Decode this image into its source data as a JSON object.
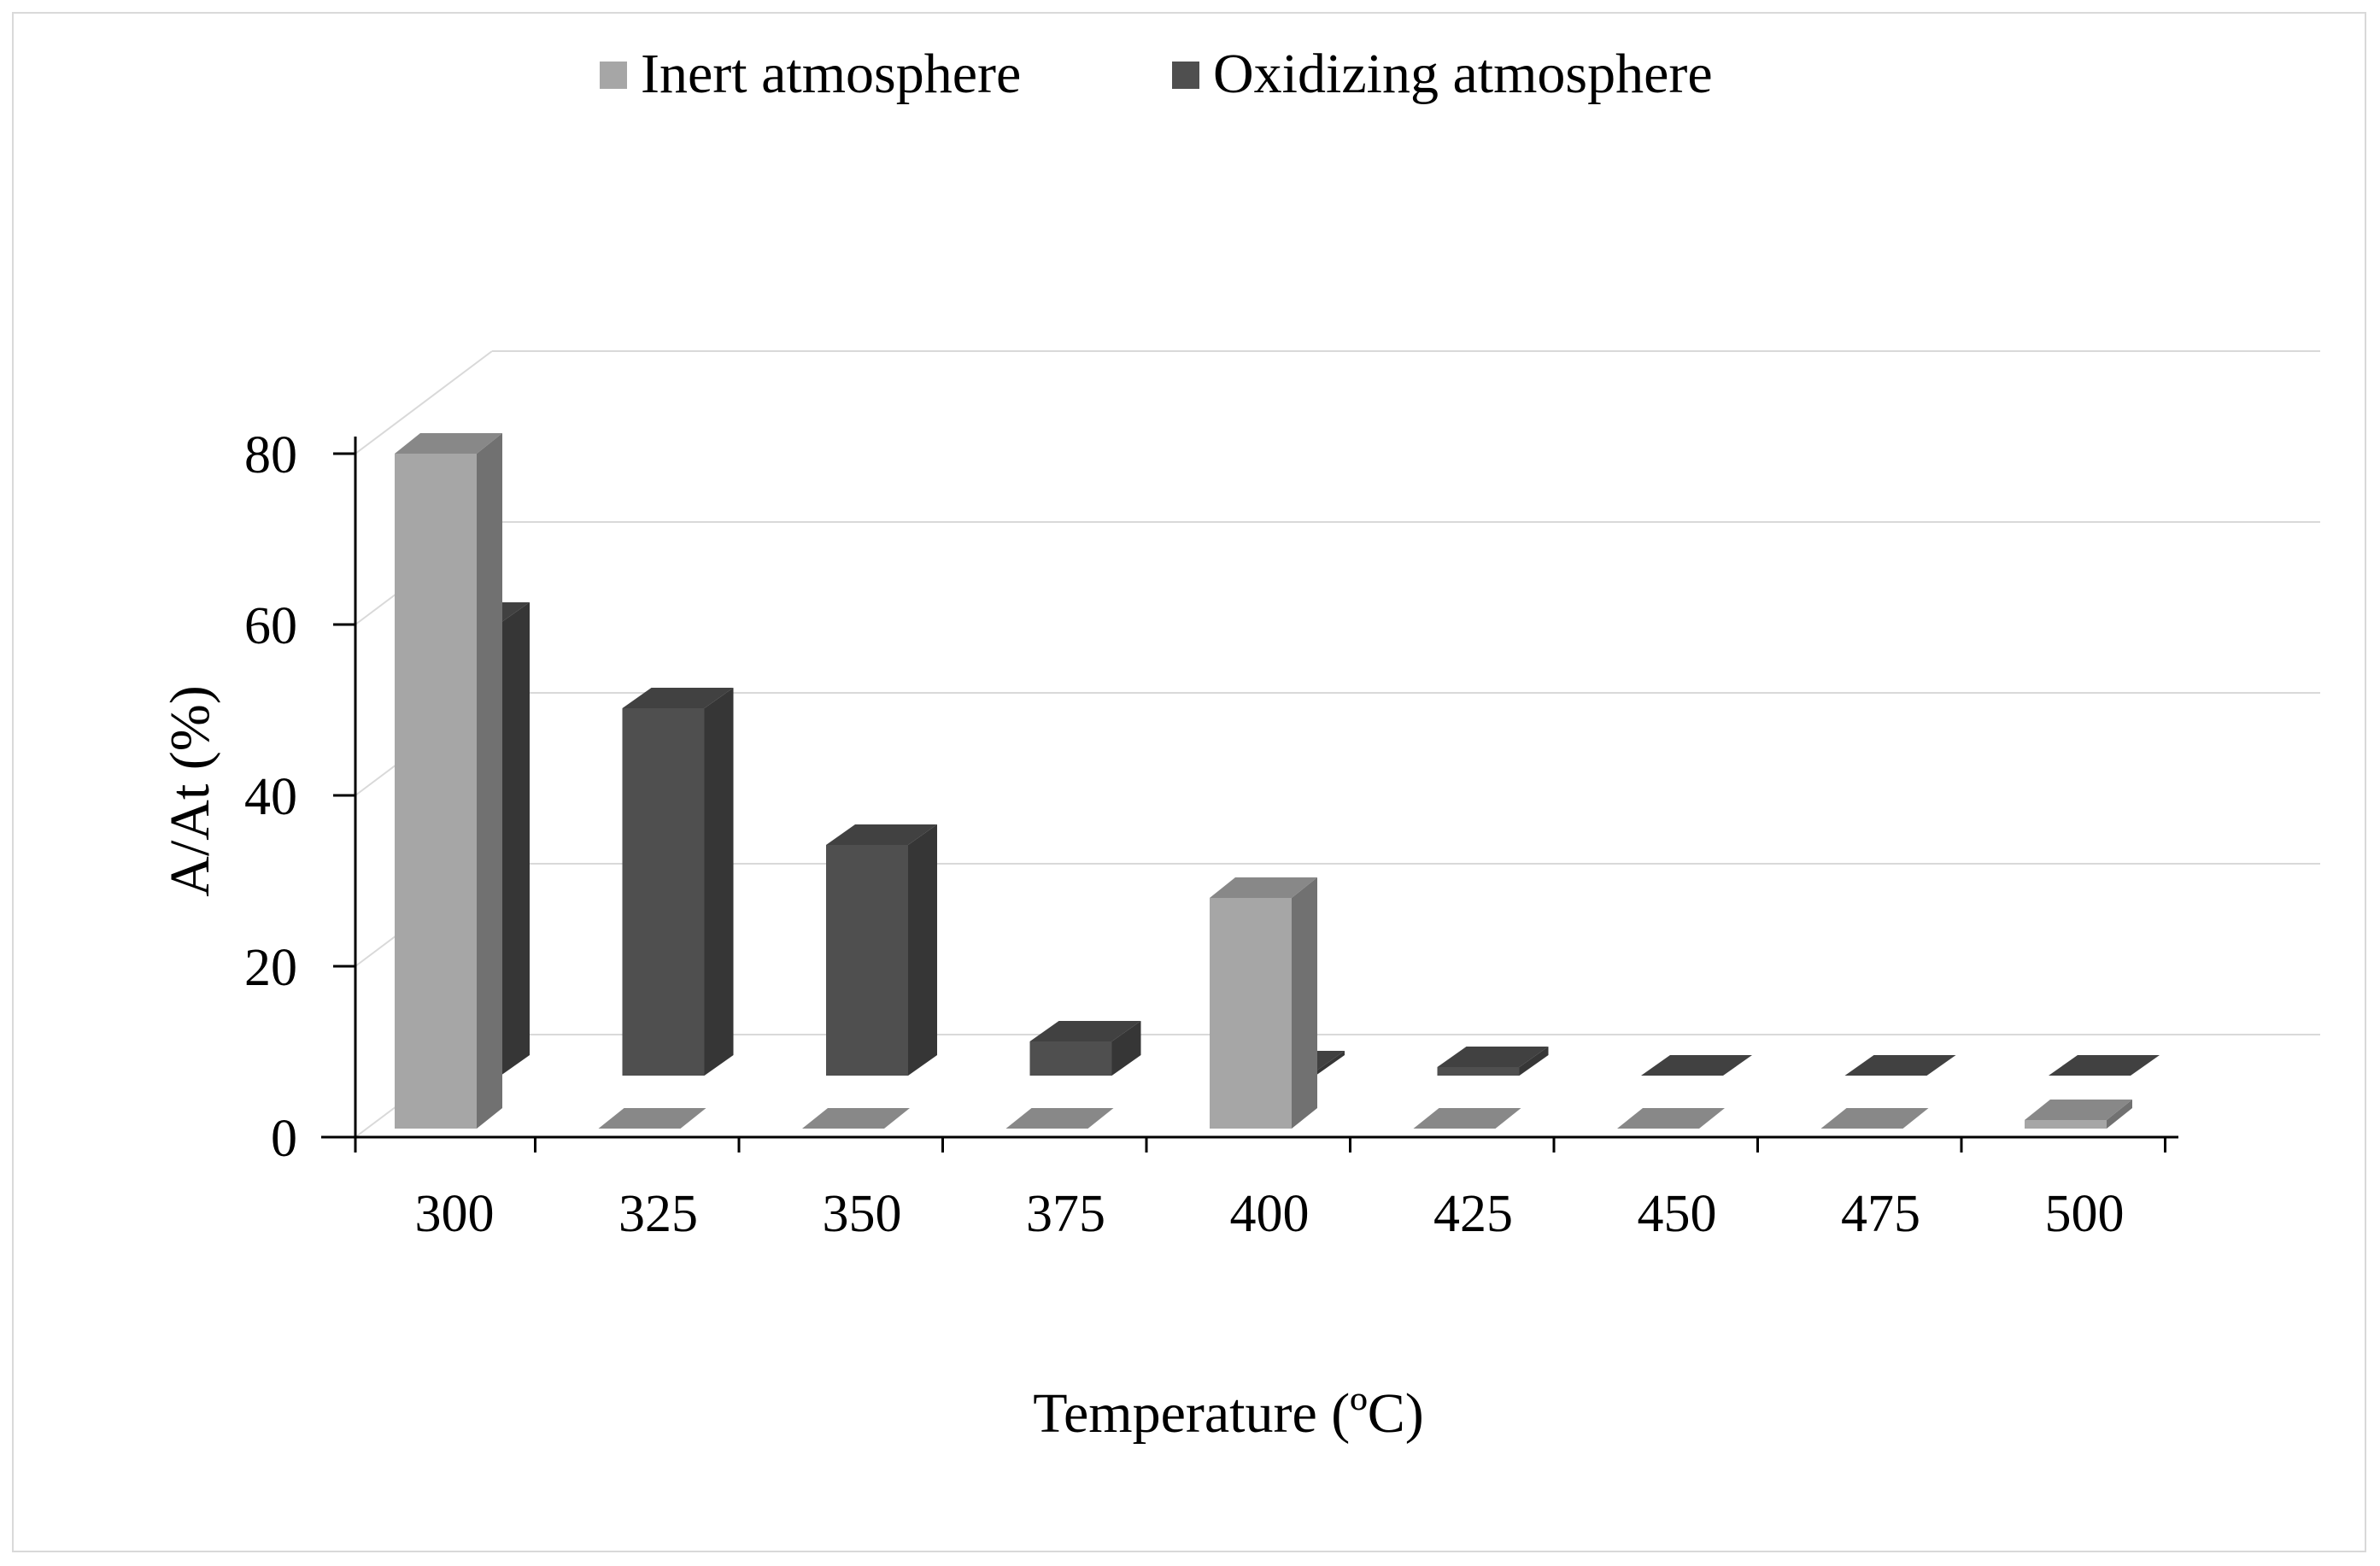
{
  "chart_data": {
    "type": "bar",
    "subtype": "3d-clustered-column",
    "title": "",
    "xlabel": "Temperature (ºC)",
    "ylabel": "A/At (%)",
    "categories": [
      "300",
      "325",
      "350",
      "375",
      "400",
      "425",
      "450",
      "475",
      "500"
    ],
    "ylim": [
      0,
      80
    ],
    "yticks": [
      "0",
      "20",
      "40",
      "60",
      "80"
    ],
    "grid": true,
    "legend_position": "top-center",
    "series": [
      {
        "name": "Inert atmosphere",
        "color": "#a6a6a6",
        "values": [
          79,
          0,
          0,
          0,
          27,
          0,
          0,
          0,
          1
        ]
      },
      {
        "name": "Oxidizing atmosphere",
        "color": "#4f4f4f",
        "values": [
          53,
          43,
          27,
          4,
          0.5,
          1,
          0,
          0,
          0
        ]
      }
    ]
  }
}
